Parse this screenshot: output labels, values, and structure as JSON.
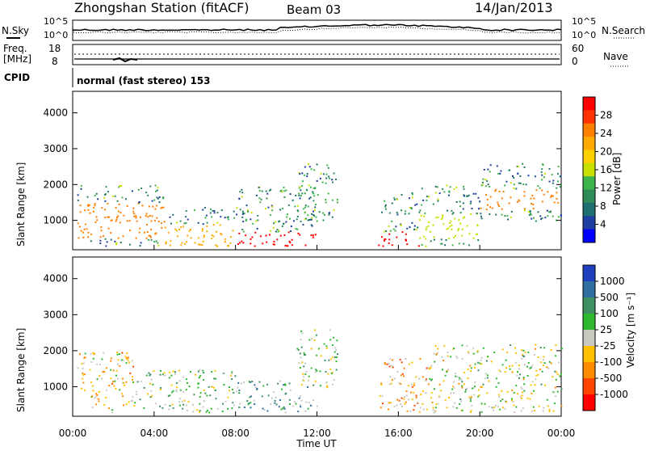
{
  "header": {
    "station": "Zhongshan Station (fitACF)",
    "beam": "Beam 03",
    "date": "14/Jan/2013"
  },
  "noise_panel": {
    "left_label": "N.Sky",
    "right_label": "N.Search",
    "left_ticks": [
      "10^5",
      "10^0"
    ],
    "right_ticks": [
      "10^5",
      "10^0"
    ]
  },
  "freq_panel": {
    "left_label_1": "Freq.",
    "left_label_2": "[MHz]",
    "right_label": "Nave",
    "left_ticks": [
      "18",
      "8"
    ],
    "right_ticks": [
      "60",
      "0"
    ]
  },
  "cpid": {
    "label": "CPID",
    "value": "normal (fast stereo) 153"
  },
  "power_panel": {
    "ylabel": "Slant Range [km]",
    "yticks": [
      "4000",
      "3000",
      "2000",
      "1000"
    ],
    "colorbar_label": "Power [dB]",
    "colorbar_ticks": [
      "28",
      "24",
      "20",
      "16",
      "12",
      "8",
      "4"
    ],
    "colorbar_colors": [
      "#ff0000",
      "#ff3300",
      "#ff7f00",
      "#ffaa00",
      "#ffd000",
      "#c8e000",
      "#3cb44b",
      "#2e8b57",
      "#1e6f6f",
      "#1e3f9f",
      "#0000ff"
    ]
  },
  "velocity_panel": {
    "ylabel": "Slant Range [km]",
    "yticks": [
      "4000",
      "3000",
      "2000",
      "1000"
    ],
    "colorbar_label": "Velocity [m s⁻¹]",
    "colorbar_ticks": [
      "1000",
      "500",
      "100",
      "25",
      "-25",
      "-100",
      "-500",
      "-1000"
    ],
    "colorbar_colors": [
      "#1f3fbf",
      "#2f6fa0",
      "#3f9060",
      "#2eb82e",
      "#c8c8c0",
      "#ffc000",
      "#ff8c00",
      "#ff4500",
      "#ff0000"
    ]
  },
  "xaxis": {
    "ticks": [
      "00:00",
      "04:00",
      "08:00",
      "12:00",
      "16:00",
      "20:00",
      "00:00"
    ],
    "label": "Time UT"
  },
  "chart_data": [
    {
      "type": "heatmap",
      "title": "Power",
      "xlabel": "Time UT",
      "ylabel": "Slant Range [km]",
      "xlim": [
        "00:00",
        "24:00"
      ],
      "ylim": [
        180,
        4600
      ],
      "colorbar": {
        "label": "Power [dB]",
        "range": [
          0,
          30
        ]
      },
      "blobs": [
        {
          "t": [
            0.2,
            4.5
          ],
          "r": [
            300,
            2000
          ],
          "dense_range": [
            500,
            1500
          ],
          "value_peak": 22
        },
        {
          "t": [
            4.5,
            8.0
          ],
          "r": [
            300,
            1400
          ],
          "dense_range": [
            300,
            900
          ],
          "value_peak": 20
        },
        {
          "t": [
            8.0,
            12.0
          ],
          "r": [
            300,
            2000
          ],
          "dense_range": [
            300,
            700
          ],
          "value_peak": 28
        },
        {
          "t": [
            11.0,
            13.0
          ],
          "r": [
            1000,
            2600
          ],
          "dense_range": [
            1400,
            2000
          ],
          "value_peak": 12
        },
        {
          "t": [
            15.0,
            17.0
          ],
          "r": [
            300,
            1800
          ],
          "dense_range": [
            300,
            700
          ],
          "value_peak": 28
        },
        {
          "t": [
            17.0,
            20.0
          ],
          "r": [
            300,
            2000
          ],
          "dense_range": [
            500,
            1200
          ],
          "value_peak": 14
        },
        {
          "t": [
            20.0,
            24.0
          ],
          "r": [
            1000,
            2600
          ],
          "dense_range": [
            1300,
            1900
          ],
          "value_peak": 22
        }
      ]
    },
    {
      "type": "heatmap",
      "title": "Velocity",
      "xlabel": "Time UT",
      "ylabel": "Slant Range [km]",
      "xlim": [
        "00:00",
        "24:00"
      ],
      "ylim": [
        180,
        4600
      ],
      "colorbar": {
        "label": "Velocity [m s⁻¹]",
        "range": [
          -1000,
          1000
        ]
      },
      "blobs": [
        {
          "t": [
            0.2,
            3.0
          ],
          "r": [
            300,
            2000
          ],
          "value_mean": -200
        },
        {
          "t": [
            3.0,
            8.0
          ],
          "r": [
            300,
            1500
          ],
          "value_mean": 150
        },
        {
          "t": [
            8.0,
            12.0
          ],
          "r": [
            300,
            1200
          ],
          "value_mean": 300
        },
        {
          "t": [
            11.0,
            13.0
          ],
          "r": [
            1000,
            2600
          ],
          "value_mean": 50
        },
        {
          "t": [
            15.0,
            17.5
          ],
          "r": [
            300,
            1800
          ],
          "value_mean": -300
        },
        {
          "t": [
            17.5,
            24.0
          ],
          "r": [
            300,
            2200
          ],
          "value_mean": 0
        }
      ]
    }
  ]
}
